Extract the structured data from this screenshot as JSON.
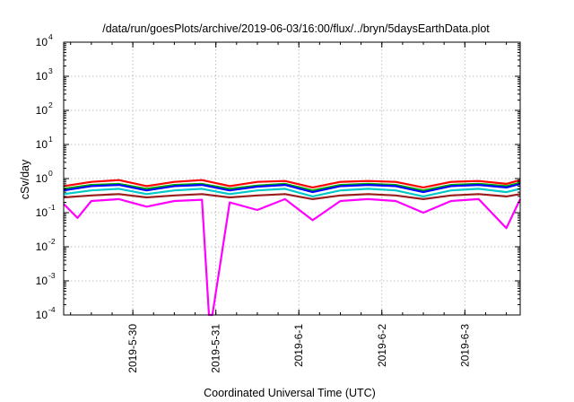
{
  "chart_data": {
    "type": "line",
    "title": "/data/run/goesPlots/archive/2019-06-03/16:00/flux/../bryn/5daysEarthData.plot",
    "xlabel": "Coordinated Universal Time (UTC)",
    "ylabel": "cSv/day",
    "yscale": "log",
    "ylim": [
      0.0001,
      10000
    ],
    "xlim": [
      "2019-05-29T04:00",
      "2019-06-03T16:00"
    ],
    "x_ticks": [
      "2019-5-30",
      "2019-5-31",
      "2019-6-1",
      "2019-6-2",
      "2019-6-3"
    ],
    "x_tick_dates": [
      "2019-05-30",
      "2019-05-31",
      "2019-06-01",
      "2019-06-02",
      "2019-06-03"
    ],
    "y_ticks": [
      {
        "base": "10",
        "exp": "4"
      },
      {
        "base": "10",
        "exp": "3"
      },
      {
        "base": "10",
        "exp": "2"
      },
      {
        "base": "10",
        "exp": "1"
      },
      {
        "base": "10",
        "exp": "0"
      },
      {
        "base": "10",
        "exp": "-1"
      },
      {
        "base": "10",
        "exp": "-2"
      },
      {
        "base": "10",
        "exp": "-3"
      },
      {
        "base": "10",
        "exp": "-4"
      }
    ],
    "grid": true,
    "legend": "none",
    "series": [
      {
        "color": "#ff0000",
        "x": [
          "2019-05-29T04:00",
          "2019-05-29T12:00",
          "2019-05-29T20:00",
          "2019-05-30T04:00",
          "2019-05-30T12:00",
          "2019-05-30T20:00",
          "2019-05-31T04:00",
          "2019-05-31T12:00",
          "2019-05-31T20:00",
          "2019-06-01T04:00",
          "2019-06-01T12:00",
          "2019-06-01T20:00",
          "2019-06-02T04:00",
          "2019-06-02T12:00",
          "2019-06-02T20:00",
          "2019-06-03T04:00",
          "2019-06-03T12:00",
          "2019-06-03T16:00"
        ],
        "y": [
          0.6,
          0.8,
          0.9,
          0.6,
          0.8,
          0.9,
          0.6,
          0.8,
          0.85,
          0.55,
          0.8,
          0.85,
          0.8,
          0.55,
          0.8,
          0.85,
          0.7,
          0.9
        ]
      },
      {
        "color": "#00b000",
        "x": [
          "2019-05-29T04:00",
          "2019-05-29T12:00",
          "2019-05-29T20:00",
          "2019-05-30T04:00",
          "2019-05-30T12:00",
          "2019-05-30T20:00",
          "2019-05-31T04:00",
          "2019-05-31T12:00",
          "2019-05-31T20:00",
          "2019-06-01T04:00",
          "2019-06-01T12:00",
          "2019-06-01T20:00",
          "2019-06-02T04:00",
          "2019-06-02T12:00",
          "2019-06-02T20:00",
          "2019-06-03T04:00",
          "2019-06-03T12:00",
          "2019-06-03T16:00"
        ],
        "y": [
          0.5,
          0.65,
          0.7,
          0.5,
          0.65,
          0.7,
          0.5,
          0.62,
          0.7,
          0.45,
          0.65,
          0.7,
          0.65,
          0.45,
          0.65,
          0.7,
          0.6,
          0.75
        ]
      },
      {
        "color": "#0000ff",
        "x": [
          "2019-05-29T04:00",
          "2019-05-29T12:00",
          "2019-05-29T20:00",
          "2019-05-30T04:00",
          "2019-05-30T12:00",
          "2019-05-30T20:00",
          "2019-05-31T04:00",
          "2019-05-31T12:00",
          "2019-05-31T20:00",
          "2019-06-01T04:00",
          "2019-06-01T12:00",
          "2019-06-01T20:00",
          "2019-06-02T04:00",
          "2019-06-02T12:00",
          "2019-06-02T20:00",
          "2019-06-03T04:00",
          "2019-06-03T12:00",
          "2019-06-03T16:00"
        ],
        "y": [
          0.45,
          0.6,
          0.65,
          0.45,
          0.6,
          0.65,
          0.45,
          0.58,
          0.65,
          0.4,
          0.6,
          0.65,
          0.6,
          0.4,
          0.6,
          0.65,
          0.55,
          0.7
        ]
      },
      {
        "color": "#00c8c8",
        "x": [
          "2019-05-29T04:00",
          "2019-05-29T12:00",
          "2019-05-29T20:00",
          "2019-05-30T04:00",
          "2019-05-30T12:00",
          "2019-05-30T20:00",
          "2019-05-31T04:00",
          "2019-05-31T12:00",
          "2019-05-31T20:00",
          "2019-06-01T04:00",
          "2019-06-01T12:00",
          "2019-06-01T20:00",
          "2019-06-02T04:00",
          "2019-06-02T12:00",
          "2019-06-02T20:00",
          "2019-06-03T04:00",
          "2019-06-03T12:00",
          "2019-06-03T16:00"
        ],
        "y": [
          0.35,
          0.45,
          0.5,
          0.35,
          0.45,
          0.5,
          0.35,
          0.45,
          0.5,
          0.3,
          0.45,
          0.5,
          0.45,
          0.3,
          0.45,
          0.5,
          0.4,
          0.5
        ]
      },
      {
        "color": "#9b1c1c",
        "x": [
          "2019-05-29T04:00",
          "2019-05-29T12:00",
          "2019-05-29T20:00",
          "2019-05-30T04:00",
          "2019-05-30T12:00",
          "2019-05-30T20:00",
          "2019-05-31T04:00",
          "2019-05-31T12:00",
          "2019-05-31T20:00",
          "2019-06-01T04:00",
          "2019-06-01T12:00",
          "2019-06-01T20:00",
          "2019-06-02T04:00",
          "2019-06-02T12:00",
          "2019-06-02T20:00",
          "2019-06-03T04:00",
          "2019-06-03T12:00",
          "2019-06-03T16:00"
        ],
        "y": [
          0.28,
          0.32,
          0.35,
          0.28,
          0.32,
          0.35,
          0.28,
          0.32,
          0.35,
          0.25,
          0.32,
          0.35,
          0.32,
          0.25,
          0.32,
          0.35,
          0.3,
          0.35
        ]
      },
      {
        "color": "#ff00ff",
        "x": [
          "2019-05-29T04:00",
          "2019-05-29T08:00",
          "2019-05-29T12:00",
          "2019-05-29T20:00",
          "2019-05-30T04:00",
          "2019-05-30T12:00",
          "2019-05-30T20:00",
          "2019-05-30T22:00",
          "2019-05-30T23:00",
          "2019-05-31T04:00",
          "2019-05-31T12:00",
          "2019-05-31T20:00",
          "2019-06-01T04:00",
          "2019-06-01T12:00",
          "2019-06-01T20:00",
          "2019-06-02T04:00",
          "2019-06-02T12:00",
          "2019-06-02T20:00",
          "2019-06-03T04:00",
          "2019-06-03T12:00",
          "2019-06-03T16:00"
        ],
        "y": [
          0.18,
          0.07,
          0.22,
          0.25,
          0.15,
          0.22,
          0.24,
          0.0001,
          0.0001,
          0.2,
          0.12,
          0.25,
          0.06,
          0.22,
          0.25,
          0.22,
          0.1,
          0.22,
          0.25,
          0.035,
          0.25
        ]
      }
    ]
  }
}
